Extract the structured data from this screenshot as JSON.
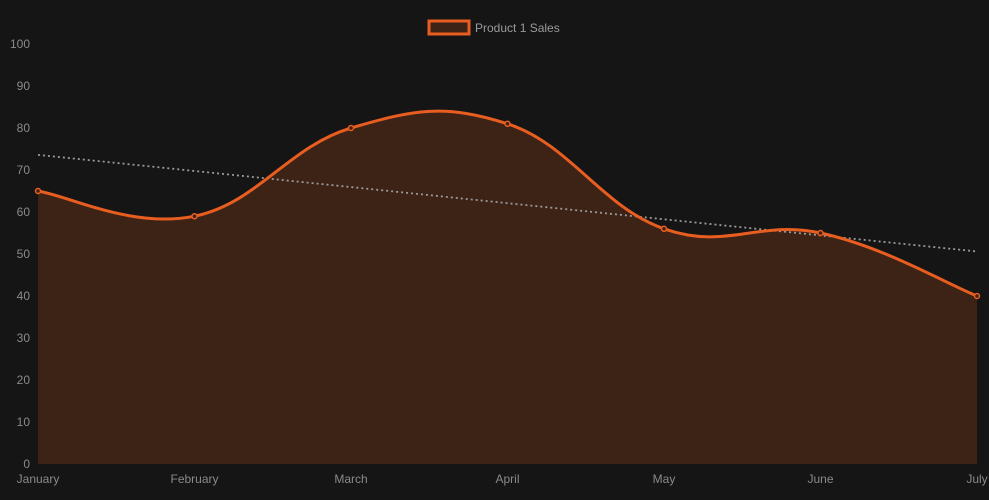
{
  "chart_data": {
    "type": "line",
    "title": "",
    "xlabel": "",
    "ylabel": "",
    "categories": [
      "January",
      "February",
      "March",
      "April",
      "May",
      "June",
      "July"
    ],
    "ylim": [
      0,
      100
    ],
    "yticks": [
      0,
      10,
      20,
      30,
      40,
      50,
      60,
      70,
      80,
      90,
      100
    ],
    "grid": false,
    "legend_position": "top",
    "series": [
      {
        "name": "Product 1 Sales",
        "values": [
          65,
          59,
          80,
          81,
          56,
          55,
          40
        ],
        "color": "#e85d20",
        "fill": "#3d2216",
        "fill_area": true,
        "smooth": true
      }
    ],
    "trendline": {
      "style": "dotted",
      "color": "#9a9a9a",
      "start": 73.6,
      "end": 50.6
    }
  }
}
